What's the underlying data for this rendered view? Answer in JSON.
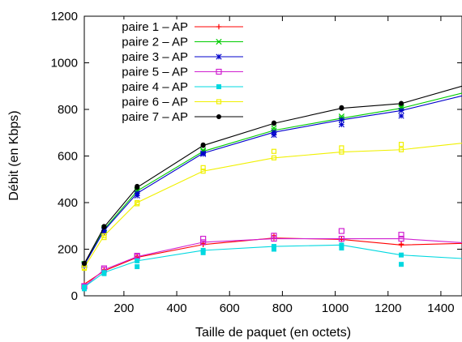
{
  "chart_data": {
    "type": "line",
    "xlabel": "Taille de paquet (en octets)",
    "ylabel": "Débit (en Kbps)",
    "xlim": [
      50,
      1480
    ],
    "ylim": [
      0,
      1200
    ],
    "xticks": [
      "200",
      "400",
      "600",
      "800",
      "1000",
      "1200",
      "1400"
    ],
    "xtick_values": [
      200,
      400,
      600,
      800,
      1000,
      1200,
      1400
    ],
    "yticks": [
      "0",
      "200",
      "400",
      "600",
      "800",
      "1000",
      "1200"
    ],
    "ytick_values": [
      0,
      200,
      400,
      600,
      800,
      1000,
      1200
    ],
    "legend_position": "top-left",
    "series": [
      {
        "name": "paire 1 – AP",
        "color": "#ff0000",
        "marker": "plus",
        "x": [
          50,
          125,
          250,
          500,
          768,
          1024,
          1250,
          1480
        ],
        "y": [
          50,
          107,
          165,
          220,
          248,
          242,
          218,
          225
        ],
        "samples_x": [
          50,
          125,
          250,
          500,
          768,
          1024,
          1250
        ],
        "samples_y": [
          48,
          112,
          170,
          225,
          258,
          245,
          222
        ]
      },
      {
        "name": "paire 2 – AP",
        "color": "#00cc00",
        "marker": "x",
        "x": [
          50,
          125,
          250,
          500,
          768,
          1024,
          1250,
          1480
        ],
        "y": [
          135,
          285,
          450,
          620,
          710,
          762,
          805,
          870
        ],
        "samples_x": [
          50,
          125,
          250,
          500,
          768,
          1024,
          1250
        ],
        "samples_y": [
          138,
          290,
          455,
          625,
          720,
          770,
          810
        ]
      },
      {
        "name": "paire 3 – AP",
        "color": "#0000cc",
        "marker": "star",
        "x": [
          50,
          125,
          250,
          500,
          768,
          1024,
          1250,
          1480
        ],
        "y": [
          132,
          280,
          440,
          612,
          702,
          755,
          795,
          858
        ],
        "samples_x": [
          50,
          125,
          250,
          500,
          768,
          1024,
          1250
        ],
        "samples_y": [
          130,
          272,
          430,
          608,
          690,
          735,
          772
        ]
      },
      {
        "name": "paire 5 – AP",
        "color": "#d020d0",
        "marker": "square-open",
        "x": [
          50,
          125,
          250,
          500,
          768,
          1024,
          1250,
          1480
        ],
        "y": [
          40,
          112,
          168,
          230,
          245,
          245,
          245,
          228
        ],
        "samples_x": [
          50,
          125,
          250,
          500,
          768,
          1024,
          1250
        ],
        "samples_y": [
          42,
          118,
          172,
          245,
          258,
          278,
          262
        ]
      },
      {
        "name": "paire 4 – AP",
        "color": "#00d8e0",
        "marker": "square-filled",
        "x": [
          50,
          125,
          250,
          500,
          768,
          1024,
          1250,
          1480
        ],
        "y": [
          38,
          100,
          150,
          195,
          212,
          218,
          175,
          160
        ],
        "samples_x": [
          50,
          125,
          250,
          500,
          768,
          1024,
          1250
        ],
        "samples_y": [
          30,
          95,
          125,
          185,
          200,
          205,
          135
        ]
      },
      {
        "name": "paire 6 – AP",
        "color": "#f0f000",
        "marker": "square-small",
        "x": [
          50,
          125,
          250,
          500,
          768,
          1024,
          1250,
          1480
        ],
        "y": [
          122,
          258,
          400,
          535,
          592,
          617,
          627,
          655
        ],
        "samples_x": [
          50,
          125,
          250,
          500,
          768,
          1024,
          1250
        ],
        "samples_y": [
          118,
          250,
          395,
          550,
          620,
          635,
          650
        ]
      },
      {
        "name": "paire 7 – AP",
        "color": "#000000",
        "marker": "circle-filled",
        "x": [
          50,
          125,
          250,
          500,
          768,
          1024,
          1250,
          1480
        ],
        "y": [
          138,
          295,
          465,
          645,
          740,
          805,
          825,
          900
        ],
        "samples_x": [
          50,
          125,
          250,
          500,
          768,
          1024,
          1250
        ],
        "samples_y": [
          140,
          298,
          470,
          648,
          742,
          808,
          826
        ]
      }
    ]
  }
}
